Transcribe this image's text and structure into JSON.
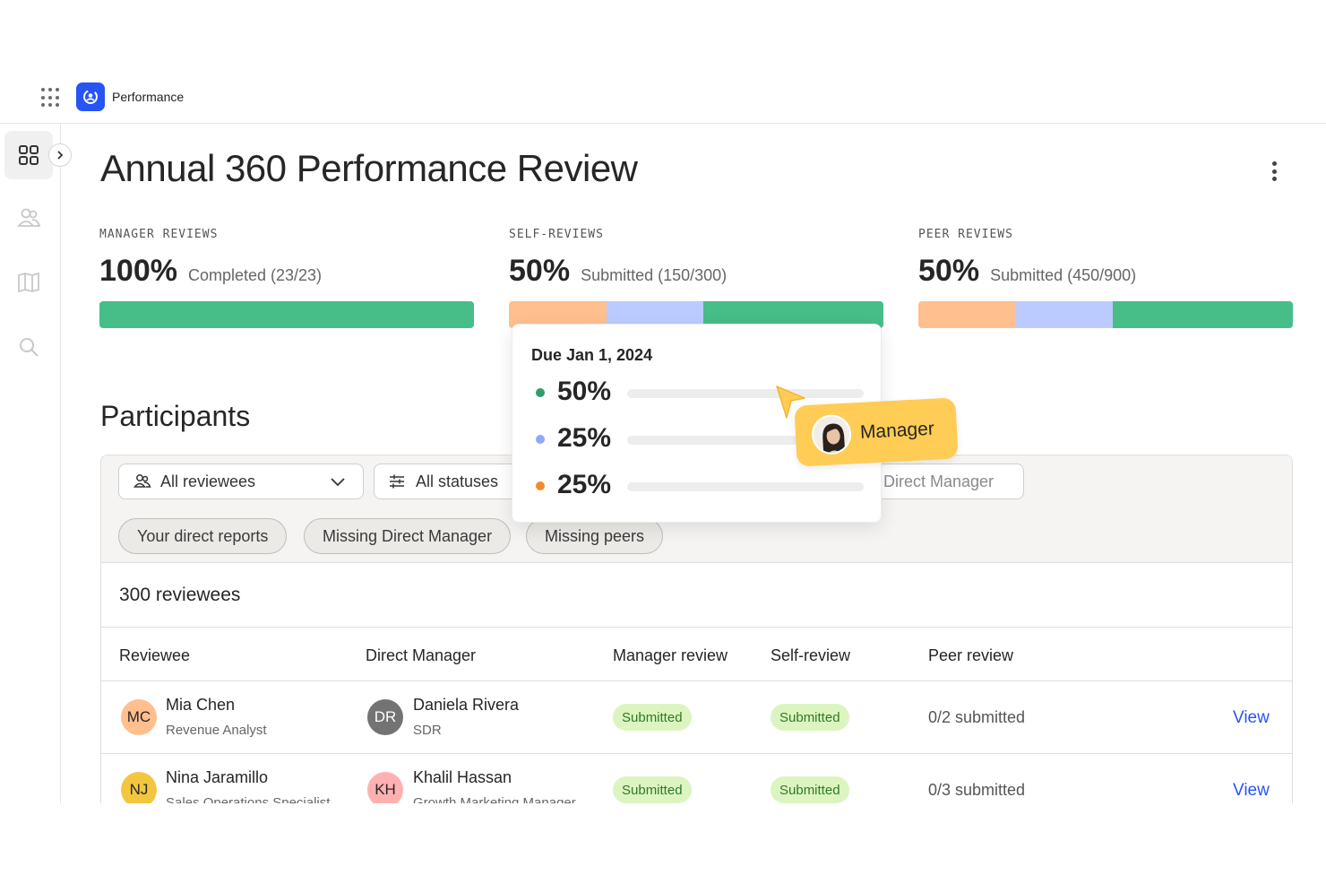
{
  "app": {
    "name": "Performance"
  },
  "page": {
    "title": "Annual 360 Performance Review"
  },
  "stats": [
    {
      "label": "MANAGER REVIEWS",
      "value": "100%",
      "detail": "Completed (23/23)",
      "segments": [
        {
          "color": "#47bd88",
          "fraction": 1.0
        }
      ]
    },
    {
      "label": "SELF-REVIEWS",
      "value": "50%",
      "detail": "Submitted (150/300)",
      "segments": [
        {
          "color": "#ffbf8e",
          "fraction": 0.26
        },
        {
          "color": "#bccbff",
          "fraction": 0.26
        },
        {
          "color": "#47bd88",
          "fraction": 0.48
        }
      ]
    },
    {
      "label": "PEER REVIEWS",
      "value": "50%",
      "detail": "Submitted (450/900)",
      "segments": [
        {
          "color": "#ffbf8e",
          "fraction": 0.26
        },
        {
          "color": "#bccbff",
          "fraction": 0.26
        },
        {
          "color": "#47bd88",
          "fraction": 0.48
        }
      ]
    }
  ],
  "popover": {
    "due": "Due Jan 1, 2024",
    "rows": [
      {
        "pct": "50%",
        "color": "#2f9e6a"
      },
      {
        "pct": "25%",
        "color": "#8fa8f8"
      },
      {
        "pct": "25%",
        "color": "#f58a2c"
      }
    ]
  },
  "manager_tag": {
    "label": "Manager"
  },
  "participants": {
    "title": "Participants",
    "filters": {
      "reviewees": "All reviewees",
      "statuses": "All statuses",
      "manager": "Direct Manager"
    },
    "chips": [
      "Your direct reports",
      "Missing Direct Manager",
      "Missing peers"
    ],
    "count": "300 reviewees",
    "columns": [
      "Reviewee",
      "Direct Manager",
      "Manager review",
      "Self-review",
      "Peer review"
    ],
    "rows": [
      {
        "initials": "MC",
        "avatar_color": "#ffbf8e",
        "name": "Mia Chen",
        "role": "Revenue Analyst",
        "mgr_initials": "DR",
        "mgr_avatar_color": "#737373",
        "mgr_name": "Daniela Rivera",
        "mgr_role": "SDR",
        "manager_review": "Submitted",
        "self_review": "Submitted",
        "peer_review": "0/2 submitted",
        "action": "View"
      },
      {
        "initials": "NJ",
        "avatar_color": "#f3c640",
        "name": "Nina Jaramillo",
        "role": "Sales Operations Specialist",
        "mgr_initials": "KH",
        "mgr_avatar_color": "#ffb1b1",
        "mgr_name": "Khalil Hassan",
        "mgr_role": "Growth Marketing Manager",
        "manager_review": "Submitted",
        "self_review": "Submitted",
        "peer_review": "0/3 submitted",
        "action": "View"
      }
    ]
  }
}
